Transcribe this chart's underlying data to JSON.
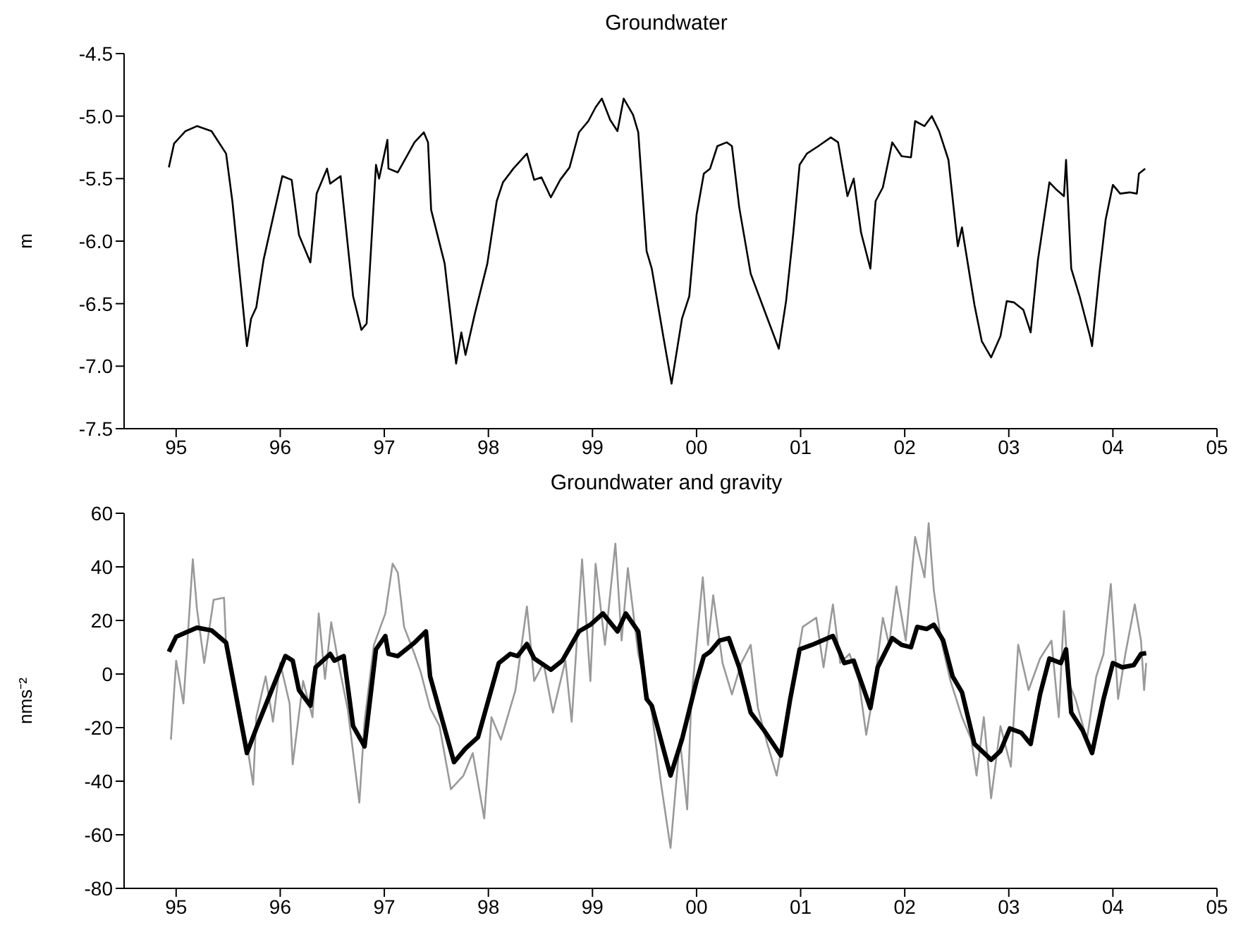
{
  "chart_data": [
    {
      "type": "line",
      "title": "Groundwater",
      "ylabel": "m",
      "xlim": [
        1994.5,
        2005
      ],
      "ylim": [
        -7.5,
        -4.5
      ],
      "xticks": [
        {
          "value": 1995,
          "label": "95"
        },
        {
          "value": 1996,
          "label": "96"
        },
        {
          "value": 1997,
          "label": "97"
        },
        {
          "value": 1998,
          "label": "98"
        },
        {
          "value": 1999,
          "label": "99"
        },
        {
          "value": 2000,
          "label": "00"
        },
        {
          "value": 2001,
          "label": "01"
        },
        {
          "value": 2002,
          "label": "02"
        },
        {
          "value": 2003,
          "label": "03"
        },
        {
          "value": 2004,
          "label": "04"
        },
        {
          "value": 2005,
          "label": "05"
        }
      ],
      "yticks": [
        {
          "value": -7.5,
          "label": "-7.5"
        },
        {
          "value": -7,
          "label": "-7.0"
        },
        {
          "value": -6.5,
          "label": "-6.5"
        },
        {
          "value": -6,
          "label": "-6.0"
        },
        {
          "value": -5.5,
          "label": "-5.5"
        },
        {
          "value": -5,
          "label": "-5.0"
        },
        {
          "value": -4.5,
          "label": "-4.5"
        }
      ],
      "marker": "none",
      "series": [
        {
          "color": "#000000",
          "x": [
            1994.93,
            1994.98,
            1995.09,
            1995.2,
            1995.34,
            1995.48,
            1995.54,
            1995.68,
            1995.72,
            1995.77,
            1995.84,
            1996.02,
            1996.11,
            1996.18,
            1996.29,
            1996.35,
            1996.45,
            1996.48,
            1996.58,
            1996.7,
            1996.78,
            1996.83,
            1996.92,
            1996.95,
            1997.03,
            1997.04,
            1997.13,
            1997.29,
            1997.38,
            1997.42,
            1997.45,
            1997.58,
            1997.69,
            1997.74,
            1997.78,
            1997.87,
            1997.99,
            1998.08,
            1998.14,
            1998.24,
            1998.37,
            1998.44,
            1998.51,
            1998.6,
            1998.69,
            1998.78,
            1998.87,
            1998.96,
            1999.03,
            1999.09,
            1999.17,
            1999.24,
            1999.3,
            1999.39,
            1999.44,
            1999.52,
            1999.57,
            1999.68,
            1999.76,
            1999.86,
            1999.93,
            2000,
            2000.07,
            2000.13,
            2000.2,
            2000.29,
            2000.34,
            2000.41,
            2000.52,
            2000.65,
            2000.79,
            2000.86,
            2000.93,
            2000.99,
            2001.06,
            2001.17,
            2001.29,
            2001.36,
            2001.45,
            2001.51,
            2001.58,
            2001.67,
            2001.72,
            2001.79,
            2001.88,
            2001.97,
            2002.06,
            2002.1,
            2002.19,
            2002.26,
            2002.33,
            2002.42,
            2002.51,
            2002.55,
            2002.67,
            2002.74,
            2002.83,
            2002.92,
            2002.98,
            2003.05,
            2003.14,
            2003.21,
            2003.28,
            2003.39,
            2003.46,
            2003.53,
            2003.55,
            2003.6,
            2003.68,
            2003.78,
            2003.8,
            2003.87,
            2003.93,
            2004,
            2004.07,
            2004.16,
            2004.23,
            2004.25,
            2004.31
          ],
          "values": [
            -5.41,
            -5.22,
            -5.12,
            -5.08,
            -5.12,
            -5.3,
            -5.68,
            -6.84,
            -6.62,
            -6.53,
            -6.15,
            -5.48,
            -5.51,
            -5.95,
            -6.17,
            -5.62,
            -5.42,
            -5.54,
            -5.48,
            -6.44,
            -6.71,
            -6.66,
            -5.39,
            -5.5,
            -5.19,
            -5.42,
            -5.45,
            -5.21,
            -5.13,
            -5.21,
            -5.75,
            -6.18,
            -6.98,
            -6.73,
            -6.91,
            -6.58,
            -6.18,
            -5.68,
            -5.53,
            -5.42,
            -5.3,
            -5.51,
            -5.49,
            -5.65,
            -5.51,
            -5.41,
            -5.13,
            -5.04,
            -4.93,
            -4.86,
            -5.03,
            -5.12,
            -4.86,
            -4.99,
            -5.13,
            -6.08,
            -6.22,
            -6.76,
            -7.14,
            -6.62,
            -6.44,
            -5.79,
            -5.46,
            -5.42,
            -5.24,
            -5.21,
            -5.24,
            -5.73,
            -6.26,
            -6.55,
            -6.86,
            -6.48,
            -5.93,
            -5.39,
            -5.3,
            -5.24,
            -5.17,
            -5.21,
            -5.64,
            -5.5,
            -5.93,
            -6.22,
            -5.68,
            -5.57,
            -5.21,
            -5.32,
            -5.33,
            -5.04,
            -5.08,
            -5,
            -5.12,
            -5.35,
            -6.04,
            -5.89,
            -6.51,
            -6.8,
            -6.93,
            -6.76,
            -6.48,
            -6.49,
            -6.55,
            -6.73,
            -6.15,
            -5.53,
            -5.59,
            -5.64,
            -5.35,
            -6.22,
            -6.44,
            -6.76,
            -6.84,
            -6.26,
            -5.83,
            -5.55,
            -5.62,
            -5.61,
            -5.62,
            -5.46,
            -5.42
          ]
        }
      ]
    },
    {
      "type": "line",
      "title": "Groundwater and gravity",
      "ylabel": "nms⁻²",
      "xlim": [
        1994.5,
        2005
      ],
      "ylim": [
        -80,
        60
      ],
      "xticks": [
        {
          "value": 1995,
          "label": "95"
        },
        {
          "value": 1996,
          "label": "96"
        },
        {
          "value": 1997,
          "label": "97"
        },
        {
          "value": 1998,
          "label": "98"
        },
        {
          "value": 1999,
          "label": "99"
        },
        {
          "value": 2000,
          "label": "00"
        },
        {
          "value": 2001,
          "label": "01"
        },
        {
          "value": 2002,
          "label": "02"
        },
        {
          "value": 2003,
          "label": "03"
        },
        {
          "value": 2004,
          "label": "04"
        },
        {
          "value": 2005,
          "label": "05"
        }
      ],
      "yticks": [
        -80,
        -60,
        -40,
        -20,
        0,
        20,
        40,
        60
      ],
      "marker": "none",
      "series": [
        {
          "color": "#999999",
          "x": [
            1994.95,
            1995,
            1995.07,
            1995.16,
            1995.2,
            1995.27,
            1995.36,
            1995.46,
            1995.48,
            1995.59,
            1995.68,
            1995.74,
            1995.77,
            1995.86,
            1995.93,
            1996,
            1996.09,
            1996.12,
            1996.22,
            1996.31,
            1996.37,
            1996.43,
            1996.49,
            1996.56,
            1996.65,
            1996.76,
            1996.81,
            1996.9,
            1997.01,
            1997.08,
            1997.13,
            1997.19,
            1997.29,
            1997.35,
            1997.44,
            1997.53,
            1997.64,
            1997.76,
            1997.85,
            1997.96,
            1998.03,
            1998.12,
            1998.26,
            1998.37,
            1998.44,
            1998.53,
            1998.62,
            1998.74,
            1998.8,
            1998.9,
            1998.98,
            1999.03,
            1999.12,
            1999.22,
            1999.28,
            1999.34,
            1999.44,
            1999.57,
            1999.66,
            1999.75,
            1999.84,
            1999.91,
            1999.95,
            2000.06,
            2000.11,
            2000.16,
            2000.25,
            2000.34,
            2000.43,
            2000.52,
            2000.59,
            2000.68,
            2000.77,
            2000.86,
            2000.93,
            2001.02,
            2001.15,
            2001.22,
            2001.31,
            2001.38,
            2001.47,
            2001.56,
            2001.63,
            2001.69,
            2001.79,
            2001.85,
            2001.92,
            2002.01,
            2002.1,
            2002.19,
            2002.23,
            2002.28,
            2002.35,
            2002.44,
            2002.55,
            2002.64,
            2002.69,
            2002.76,
            2002.83,
            2002.92,
            2003.02,
            2003.09,
            2003.19,
            2003.3,
            2003.41,
            2003.48,
            2003.53,
            2003.57,
            2003.64,
            2003.75,
            2003.84,
            2003.91,
            2003.98,
            2004.05,
            2004.12,
            2004.21,
            2004.27,
            2004.3,
            2004.32
          ],
          "values": [
            -24.5,
            5,
            -11,
            42.8,
            24.3,
            4.1,
            27.7,
            28.5,
            10.9,
            -9.3,
            -26.1,
            -41.3,
            -16.1,
            -0.9,
            -17.8,
            4.1,
            -11,
            -33.7,
            -2.6,
            -16.1,
            22.6,
            -1.8,
            19.3,
            4.1,
            -13.5,
            -48,
            -17.8,
            10.9,
            22.6,
            41.2,
            37.8,
            17.6,
            7.5,
            0.7,
            -12.7,
            -19.4,
            -43,
            -37.9,
            -29.5,
            -53.9,
            -16.1,
            -24.5,
            -6,
            25.2,
            -2.6,
            4.1,
            -14.4,
            5,
            -17.8,
            42.8,
            -2.6,
            41.2,
            10.9,
            48.7,
            12.5,
            39.5,
            7.5,
            -14.4,
            -41.3,
            -64.9,
            -24.5,
            -50.5,
            -9.3,
            36.1,
            10.9,
            29.4,
            4.1,
            -7.6,
            4.1,
            10.9,
            -12.7,
            -26.1,
            -37.9,
            -17.8,
            -2.6,
            17.6,
            21,
            2.5,
            26,
            4.1,
            7.5,
            -2.6,
            -22.7,
            -9.3,
            21,
            10.9,
            32.7,
            12.5,
            51.2,
            36.1,
            56.3,
            31.1,
            12.5,
            -2.6,
            -16.1,
            -24.5,
            -37.9,
            -16.1,
            -46.4,
            -19.4,
            -34.6,
            10.9,
            -6,
            5.8,
            12.5,
            -16.1,
            23.5,
            -2.6,
            -9.3,
            -24.5,
            -0.9,
            7.5,
            33.6,
            -9.3,
            7.5,
            26,
            12.5,
            -6,
            4.1
          ]
        },
        {
          "color": "#000000",
          "x": [
            1994.93,
            1995,
            1995.2,
            1995.34,
            1995.48,
            1995.68,
            1995.77,
            1996.05,
            1996.12,
            1996.18,
            1996.29,
            1996.34,
            1996.48,
            1996.52,
            1996.61,
            1996.7,
            1996.81,
            1996.92,
            1997.01,
            1997.04,
            1997.13,
            1997.29,
            1997.4,
            1997.44,
            1997.67,
            1997.78,
            1997.9,
            1998.1,
            1998.21,
            1998.28,
            1998.37,
            1998.44,
            1998.6,
            1998.71,
            1998.87,
            1998.98,
            1999.1,
            1999.24,
            1999.32,
            1999.44,
            1999.52,
            1999.57,
            1999.75,
            1999.86,
            2000,
            2000.07,
            2000.13,
            2000.22,
            2000.31,
            2000.41,
            2000.52,
            2000.65,
            2000.81,
            2000.9,
            2000.99,
            2001.11,
            2001.31,
            2001.42,
            2001.51,
            2001.67,
            2001.74,
            2001.88,
            2001.97,
            2002.06,
            2002.12,
            2002.21,
            2002.28,
            2002.37,
            2002.46,
            2002.55,
            2002.67,
            2002.83,
            2002.92,
            2003.01,
            2003.12,
            2003.21,
            2003.3,
            2003.39,
            2003.5,
            2003.55,
            2003.6,
            2003.71,
            2003.8,
            2003.91,
            2004,
            2004.09,
            2004.2,
            2004.27,
            2004.32
          ],
          "values": [
            8.3,
            13.9,
            17.3,
            16.3,
            11.7,
            -29.5,
            -20.3,
            6.7,
            5,
            -6,
            -11.8,
            2.5,
            7.5,
            5,
            6.7,
            -19.4,
            -27,
            9.2,
            14.2,
            7.5,
            6.7,
            11.7,
            15.9,
            -0.9,
            -32.9,
            -27.8,
            -23.6,
            4.1,
            7.5,
            6.7,
            11.2,
            5.8,
            1.6,
            5,
            15.9,
            18.4,
            22.6,
            15.9,
            22.6,
            15.9,
            -9.3,
            -11.8,
            -37.9,
            -24.4,
            -2.6,
            6.7,
            8.3,
            12.5,
            13.4,
            2.5,
            -14.4,
            -21.1,
            -30.4,
            -9.3,
            9.2,
            10.9,
            14.2,
            4.1,
            5,
            -12.7,
            2.5,
            13.4,
            10.9,
            10,
            17.6,
            16.8,
            18.4,
            12.5,
            -0.9,
            -6.8,
            -26.1,
            -32,
            -28.7,
            -20.3,
            -21.9,
            -26.1,
            -7.6,
            5.8,
            4.1,
            9.2,
            -14.4,
            -21.1,
            -29.5,
            -9.3,
            4.1,
            2.5,
            3.3,
            7.5,
            7.8
          ]
        }
      ]
    }
  ]
}
